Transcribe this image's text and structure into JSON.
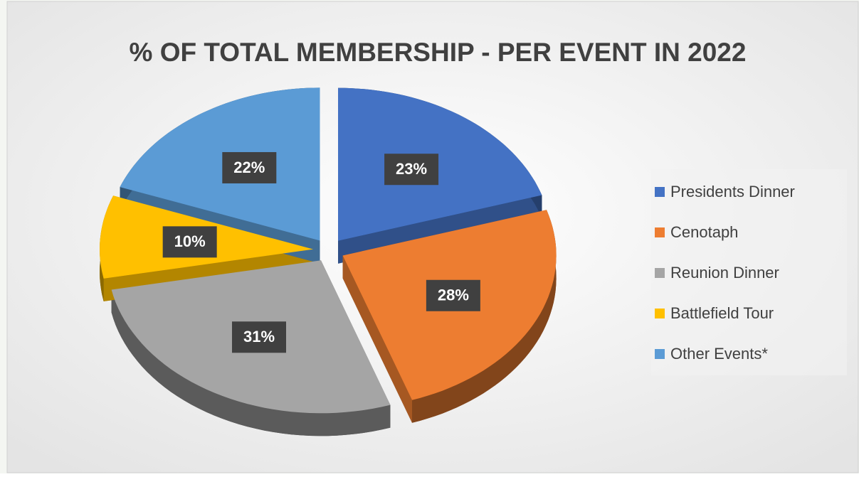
{
  "chart_data": {
    "type": "pie",
    "title": "% OF TOTAL MEMBERSHIP - PER EVENT IN 2022",
    "categories": [
      "Presidents Dinner",
      "Cenotaph",
      "Reunion Dinner",
      "Battlefield Tour",
      "Other Events*"
    ],
    "values": [
      23,
      28,
      31,
      10,
      22
    ],
    "value_labels": [
      "23%",
      "28%",
      "31%",
      "10%",
      "22%"
    ],
    "colors": [
      "#4472c4",
      "#ed7d31",
      "#a5a5a5",
      "#ffc000",
      "#5b9bd5"
    ],
    "legend": "right"
  }
}
